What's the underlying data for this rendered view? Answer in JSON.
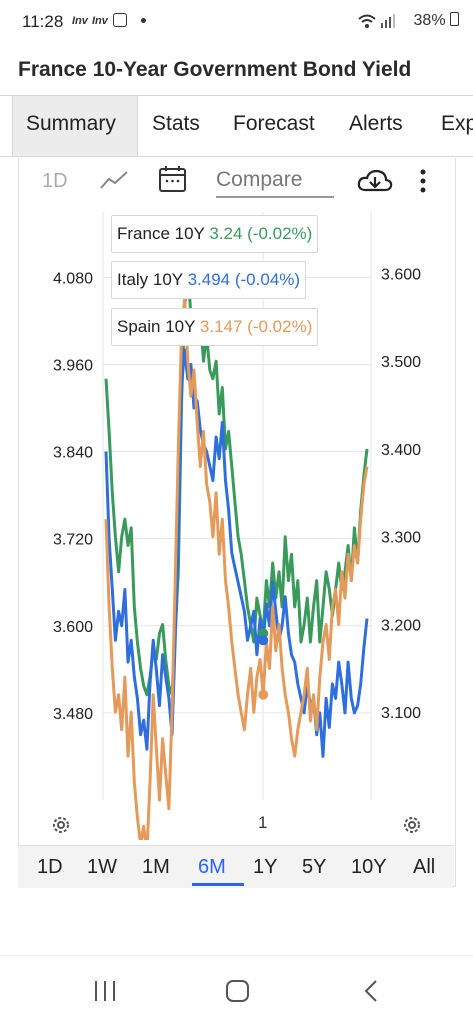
{
  "status_bar": {
    "time": "11:28",
    "app_icons": [
      "Inv",
      "Inv"
    ],
    "battery": "38%"
  },
  "header": {
    "title": "France 10-Year Government Bond Yield"
  },
  "tabs": [
    {
      "label": "Summary",
      "active": true
    },
    {
      "label": "Stats"
    },
    {
      "label": "Forecast"
    },
    {
      "label": "Alerts"
    },
    {
      "label": "Exp"
    }
  ],
  "toolbar": {
    "interval_label": "1D",
    "compare_placeholder": "Compare"
  },
  "legend": [
    {
      "name": "France 10Y",
      "value": "3.24",
      "change": "(-0.02%)",
      "color": "#3a9a5b"
    },
    {
      "name": "Italy 10Y",
      "value": "3.494",
      "change": "(-0.04%)",
      "color": "#2f6fdc"
    },
    {
      "name": "Spain 10Y",
      "value": "3.147",
      "change": "(-0.02%)",
      "color": "#e39a5a"
    }
  ],
  "x_axis_label_center": "1",
  "periods": [
    {
      "label": "1D"
    },
    {
      "label": "1W"
    },
    {
      "label": "1M"
    },
    {
      "label": "6M",
      "active": true
    },
    {
      "label": "1Y"
    },
    {
      "label": "5Y"
    },
    {
      "label": "10Y"
    },
    {
      "label": "All"
    }
  ],
  "chart_data": {
    "type": "line",
    "left_axis": {
      "ticks": [
        "4.080",
        "3.960",
        "3.840",
        "3.720",
        "3.600",
        "3.480"
      ],
      "ylim": [
        3.36,
        4.17
      ]
    },
    "right_axis": {
      "ticks": [
        "3.600",
        "3.500",
        "3.400",
        "3.300",
        "3.200",
        "3.100"
      ],
      "ylim": [
        3.0,
        3.67
      ]
    },
    "grid": true,
    "series": [
      {
        "name": "France 10Y",
        "axis": "right",
        "color": "#3a9a5b",
        "values": [
          3.48,
          3.42,
          3.35,
          3.3,
          3.26,
          3.3,
          3.32,
          3.29,
          3.31,
          3.22,
          3.18,
          3.15,
          3.13,
          3.12,
          3.14,
          3.17,
          3.16,
          3.19,
          3.2,
          3.16,
          3.13,
          3.12,
          3.19,
          3.26,
          3.45,
          3.56,
          3.61,
          3.55,
          3.52,
          3.53,
          3.55,
          3.5,
          3.53,
          3.49,
          3.48,
          3.5,
          3.44,
          3.47,
          3.4,
          3.42,
          3.38,
          3.34,
          3.3,
          3.28,
          3.25,
          3.22,
          3.2,
          3.18,
          3.23,
          3.21,
          3.19,
          3.25,
          3.22,
          3.27,
          3.23,
          3.26,
          3.22,
          3.3,
          3.25,
          3.28,
          3.22,
          3.25,
          3.18,
          3.2,
          3.23,
          3.18,
          3.22,
          3.25,
          3.18,
          3.22,
          3.26,
          3.24,
          3.21,
          3.24,
          3.27,
          3.24,
          3.26,
          3.29,
          3.25,
          3.31,
          3.27,
          3.33,
          3.37,
          3.4
        ]
      },
      {
        "name": "Italy 10Y",
        "axis": "left",
        "color": "#2f6fdc",
        "values": [
          3.84,
          3.72,
          3.65,
          3.58,
          3.62,
          3.6,
          3.65,
          3.55,
          3.58,
          3.53,
          3.5,
          3.45,
          3.47,
          3.43,
          3.52,
          3.58,
          3.54,
          3.49,
          3.56,
          3.53,
          3.5,
          3.45,
          3.58,
          3.72,
          3.93,
          3.98,
          3.94,
          3.96,
          3.9,
          3.91,
          3.87,
          3.85,
          3.84,
          3.82,
          3.8,
          3.86,
          3.83,
          3.88,
          3.8,
          3.76,
          3.7,
          3.68,
          3.66,
          3.64,
          3.62,
          3.58,
          3.6,
          3.62,
          3.56,
          3.61,
          3.58,
          3.63,
          3.6,
          3.66,
          3.62,
          3.58,
          3.6,
          3.64,
          3.59,
          3.56,
          3.55,
          3.52,
          3.5,
          3.48,
          3.52,
          3.49,
          3.5,
          3.45,
          3.48,
          3.42,
          3.5,
          3.46,
          3.52,
          3.5,
          3.55,
          3.52,
          3.48,
          3.55,
          3.5,
          3.48,
          3.49,
          3.52,
          3.57,
          3.61
        ]
      },
      {
        "name": "Spain 10Y",
        "axis": "right",
        "color": "#e39a5a",
        "values": [
          3.32,
          3.22,
          3.15,
          3.1,
          3.12,
          3.08,
          3.14,
          3.05,
          3.1,
          3.02,
          2.98,
          2.95,
          2.97,
          2.94,
          3.02,
          3.12,
          3.06,
          3.0,
          3.07,
          3.03,
          2.99,
          3.1,
          3.25,
          3.4,
          3.53,
          3.57,
          3.5,
          3.46,
          3.49,
          3.43,
          3.38,
          3.42,
          3.36,
          3.34,
          3.3,
          3.35,
          3.28,
          3.32,
          3.25,
          3.22,
          3.18,
          3.15,
          3.12,
          3.1,
          3.08,
          3.12,
          3.15,
          3.1,
          3.14,
          3.16,
          3.12,
          3.18,
          3.15,
          3.22,
          3.17,
          3.2,
          3.15,
          3.12,
          3.1,
          3.07,
          3.05,
          3.08,
          3.1,
          3.12,
          3.15,
          3.09,
          3.12,
          3.08,
          3.14,
          3.18,
          3.2,
          3.16,
          3.22,
          3.24,
          3.2,
          3.26,
          3.23,
          3.28,
          3.25,
          3.29,
          3.27,
          3.32,
          3.36,
          3.38
        ]
      }
    ]
  }
}
